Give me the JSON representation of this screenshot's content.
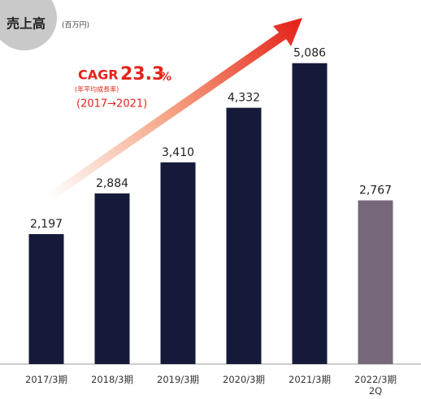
{
  "chart_data": {
    "type": "bar",
    "title": "売上高",
    "subtitle": "(百万円)",
    "annotation": {
      "label": "CAGR",
      "number": "23.3",
      "unit": "%",
      "note": "(年平均成長率)",
      "period": "(2017→2021)"
    },
    "categories": [
      "2017/3期",
      "2018/3期",
      "2019/3期",
      "2020/3期",
      "2021/3期",
      "2022/3期\n2Q"
    ],
    "values": [
      2197,
      2884,
      3410,
      4332,
      5086,
      2767
    ],
    "value_labels": [
      "2,197",
      "2,884",
      "3,410",
      "4,332",
      "5,086",
      "2,767"
    ],
    "colors": [
      "#161a3a",
      "#161a3a",
      "#161a3a",
      "#161a3a",
      "#161a3a",
      "#76687a"
    ]
  }
}
